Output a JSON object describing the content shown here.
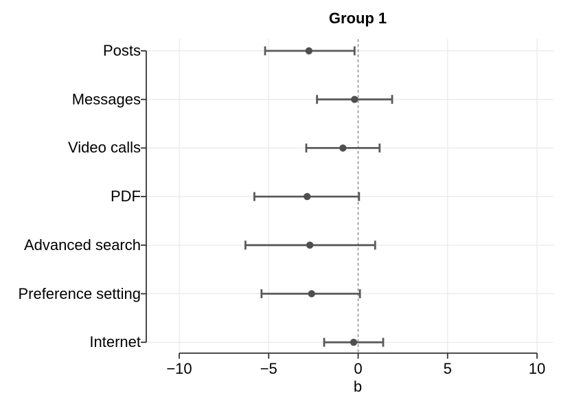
{
  "chart_data": {
    "type": "scatter",
    "subtype": "horizontal-forest-coefficient-plot",
    "title": "Group 1",
    "xlabel": "b",
    "ylabel": "",
    "categories": [
      "Posts",
      "Messages",
      "Video calls",
      "PDF",
      "Advanced search",
      "Preference setting",
      "Internet"
    ],
    "series": [
      {
        "name": "estimate",
        "values": [
          -2.75,
          -0.2,
          -0.85,
          -2.85,
          -2.7,
          -2.6,
          -0.25
        ]
      },
      {
        "name": "ci_lower",
        "values": [
          -5.2,
          -2.3,
          -2.9,
          -5.8,
          -6.3,
          -5.4,
          -1.9
        ]
      },
      {
        "name": "ci_upper",
        "values": [
          -0.2,
          1.9,
          1.2,
          0.05,
          0.95,
          0.1,
          1.4
        ]
      }
    ],
    "xticks": [
      -10,
      -5,
      0,
      5,
      10
    ],
    "xtick_labels": [
      "−10",
      "−5",
      "0",
      "5",
      "10"
    ],
    "xlim": [
      -11.8,
      10.9
    ],
    "reference_line_x": 0,
    "grid": true,
    "legend_position": "none",
    "colors": {
      "point": "#4f4f4f",
      "ci_bar": "#5a5a5a",
      "reference_line": "#8f8f8f",
      "gridline": "#ebebeb",
      "axis": "#333333",
      "text": "#000000",
      "background": "#ffffff"
    }
  }
}
